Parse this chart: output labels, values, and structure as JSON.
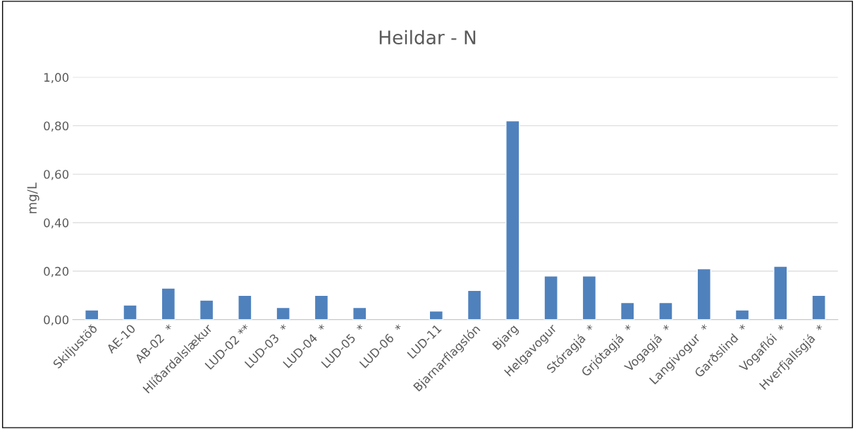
{
  "chart_data": {
    "type": "bar",
    "title": "Heildar - N",
    "ylabel": "mg/L",
    "categories": [
      "Skiljustöð",
      "AE-10",
      "AB-02  *",
      "Hlíðardalslækur",
      "LUD-02 **",
      "LUD-03  *",
      "LUD-04  *",
      "LUD-05  *",
      "LUD-06  *",
      "LUD-11",
      "Bjarnarflagslón",
      "Bjarg",
      "Helgavogur",
      "Stóragjá  *",
      "Grjótagjá  *",
      "Vogagjá  *",
      "Langivogur  *",
      "Garðslind  *",
      "Vogaflói  *",
      "Hverfjallsgjá  *"
    ],
    "values": [
      0.04,
      0.06,
      0.13,
      0.08,
      0.1,
      0.05,
      0.1,
      0.05,
      null,
      0.035,
      0.12,
      0.82,
      0.18,
      0.18,
      0.07,
      0.07,
      0.21,
      0.04,
      0.22,
      0.1
    ],
    "color": "#4f81bd",
    "ylim": [
      0,
      1.0
    ],
    "yticks": [
      {
        "value": 0,
        "label": "0,00"
      },
      {
        "value": 0.2,
        "label": "0,20"
      },
      {
        "value": 0.4,
        "label": "0,40"
      },
      {
        "value": 0.6,
        "label": "0,60"
      },
      {
        "value": 0.8,
        "label": "0,80"
      },
      {
        "value": 1.0,
        "label": "1,00"
      }
    ],
    "grid": "y"
  }
}
